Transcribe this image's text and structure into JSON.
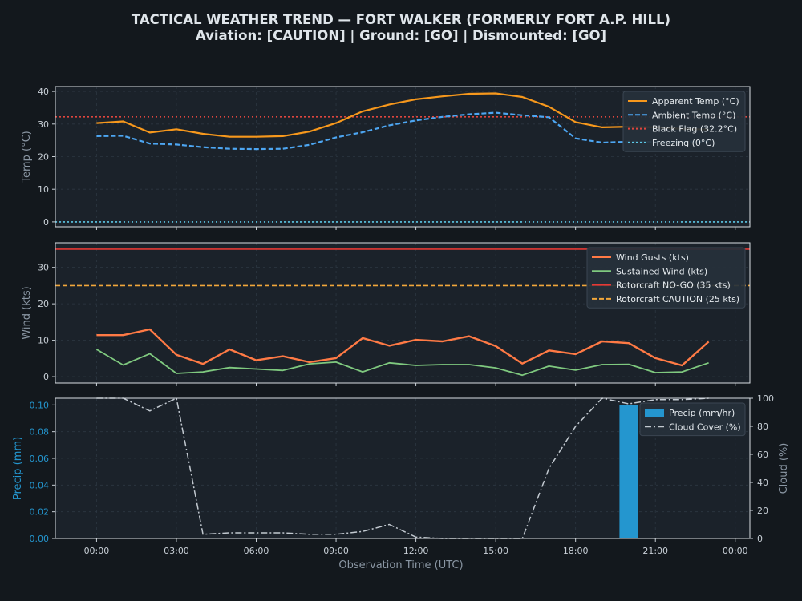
{
  "header": {
    "title": "TACTICAL WEATHER TREND — FORT WALKER (FORMERLY FORT A.P. HILL)",
    "subtitle": "Aviation: [CAUTION]  |  Ground: [GO]  |  Dismounted: [GO]"
  },
  "colors": {
    "background": "#13181d",
    "panel": "#1b222a",
    "apparent": "#f7981c",
    "ambient": "#4da6f2",
    "black_flag": "#e0463e",
    "freezing": "#5cc8e6",
    "gusts": "#ff7a45",
    "sustained": "#7fc97f",
    "nogo": "#e53935",
    "caution": "#f2a73b",
    "precip": "#2496cf",
    "cloud": "#c2c9d0"
  },
  "chart_data": [
    {
      "type": "line",
      "ylabel": "Temp (°C)",
      "ylim": [
        -1.5,
        41.5
      ],
      "yticks": [
        0,
        10,
        20,
        30,
        40
      ],
      "x_hours": [
        0,
        1,
        2,
        3,
        4,
        5,
        6,
        7,
        8,
        9,
        10,
        11,
        12,
        13,
        14,
        15,
        16,
        17,
        18,
        19,
        20,
        21,
        22,
        23
      ],
      "series": [
        {
          "name": "Apparent Temp (°C)",
          "style": "solid",
          "values": [
            30.3,
            30.8,
            27.4,
            28.4,
            27.0,
            26.1,
            26.1,
            26.3,
            27.7,
            30.3,
            33.9,
            36.0,
            37.6,
            38.5,
            39.3,
            39.4,
            38.3,
            35.3,
            30.6,
            29.0,
            29.2,
            29.0,
            28.5,
            28.3
          ]
        },
        {
          "name": "Ambient Temp (°C)",
          "style": "dashed",
          "values": [
            26.3,
            26.4,
            24.0,
            23.7,
            22.9,
            22.4,
            22.3,
            22.4,
            23.6,
            25.9,
            27.5,
            29.6,
            31.1,
            32.2,
            33.0,
            33.5,
            32.7,
            32.1,
            25.6,
            24.3,
            24.6,
            24.5,
            24.6,
            24.7
          ]
        }
      ],
      "thresholds": [
        {
          "name": "Black Flag (32.2°C)",
          "value": 32.2,
          "style": "dotted",
          "color_key": "black_flag"
        },
        {
          "name": "Freezing (0°C)",
          "value": 0,
          "style": "dotted",
          "color_key": "freezing"
        }
      ],
      "legend": "top-right",
      "grid": true
    },
    {
      "type": "line",
      "ylabel": "Wind (kts)",
      "ylim": [
        -1.75,
        36.75
      ],
      "yticks": [
        0,
        10,
        20,
        30
      ],
      "x_hours": [
        0,
        1,
        2,
        3,
        4,
        5,
        6,
        7,
        8,
        9,
        10,
        11,
        12,
        13,
        14,
        15,
        16,
        17,
        18,
        19,
        20,
        21,
        22,
        23
      ],
      "series": [
        {
          "name": "Wind Gusts (kts)",
          "style": "solid",
          "values": [
            11.4,
            11.4,
            13.0,
            6.0,
            3.5,
            7.5,
            4.5,
            5.6,
            4.0,
            5.1,
            10.6,
            8.5,
            10.1,
            9.7,
            11.1,
            8.4,
            3.6,
            7.2,
            6.2,
            9.7,
            9.2,
            5.1,
            3.1,
            9.6
          ]
        },
        {
          "name": "Sustained Wind (kts)",
          "style": "solid",
          "values": [
            7.5,
            3.2,
            6.3,
            0.9,
            1.3,
            2.5,
            2.1,
            1.7,
            3.5,
            4.0,
            1.3,
            3.8,
            3.1,
            3.3,
            3.3,
            2.4,
            0.4,
            2.9,
            1.8,
            3.3,
            3.4,
            1.1,
            1.3,
            3.8
          ]
        }
      ],
      "thresholds": [
        {
          "name": "Rotorcraft NO-GO (35 kts)",
          "value": 35,
          "style": "solid",
          "color_key": "nogo"
        },
        {
          "name": "Rotorcraft CAUTION (25 kts)",
          "value": 25,
          "style": "dashed",
          "color_key": "caution"
        }
      ],
      "legend": "top-right",
      "grid": true
    },
    {
      "type": "bar+line",
      "ylabel_left": "Precip (mm)",
      "ylabel_right": "Cloud (%)",
      "xlabel": "Observation Time (UTC)",
      "ylim_left": [
        0,
        0.105
      ],
      "yticks_left": [
        "0.00",
        "0.02",
        "0.04",
        "0.06",
        "0.08",
        "0.10"
      ],
      "ylim_right": [
        0,
        100
      ],
      "yticks_right": [
        "0",
        "20",
        "40",
        "60",
        "80",
        "100"
      ],
      "precip": {
        "name": "Precip (mm/hr)",
        "x_hours": [
          20
        ],
        "values": [
          0.1
        ]
      },
      "cloud": {
        "name": "Cloud Cover (%)",
        "style": "dashdot",
        "x_hours": [
          0,
          1,
          2,
          3,
          4,
          5,
          6,
          7,
          8,
          9,
          10,
          11,
          12,
          13,
          14,
          15,
          16,
          17,
          18,
          19,
          20,
          21,
          22,
          23
        ],
        "values": [
          100,
          100,
          91,
          100,
          3,
          4,
          4,
          4,
          3,
          3,
          5,
          10,
          1,
          0,
          0,
          0,
          0,
          50,
          80,
          100,
          96,
          99,
          99,
          100
        ]
      },
      "legend": "top-right",
      "grid": true
    }
  ],
  "x_axis": {
    "tick_hours": [
      0,
      3,
      6,
      9,
      12,
      15,
      18,
      21,
      24
    ],
    "tick_labels": [
      "00:00",
      "03:00",
      "06:00",
      "09:00",
      "12:00",
      "15:00",
      "18:00",
      "21:00",
      "00:00"
    ],
    "xlim_hours": [
      -1.55,
      24.55
    ]
  }
}
